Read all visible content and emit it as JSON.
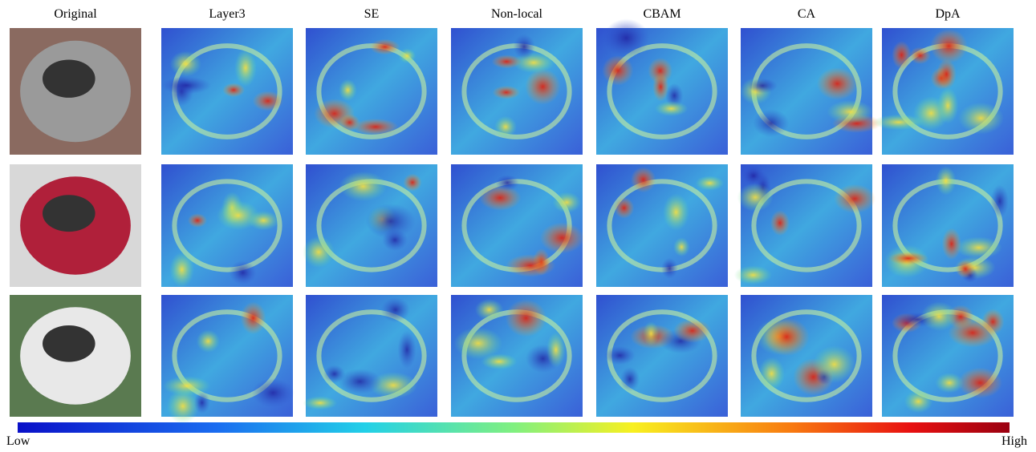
{
  "columns": [
    "Original",
    "Layer3",
    "SE",
    "Non-local",
    "CBAM",
    "CA",
    "DpA"
  ],
  "colorbar": {
    "low": "Low",
    "high": "High"
  }
}
